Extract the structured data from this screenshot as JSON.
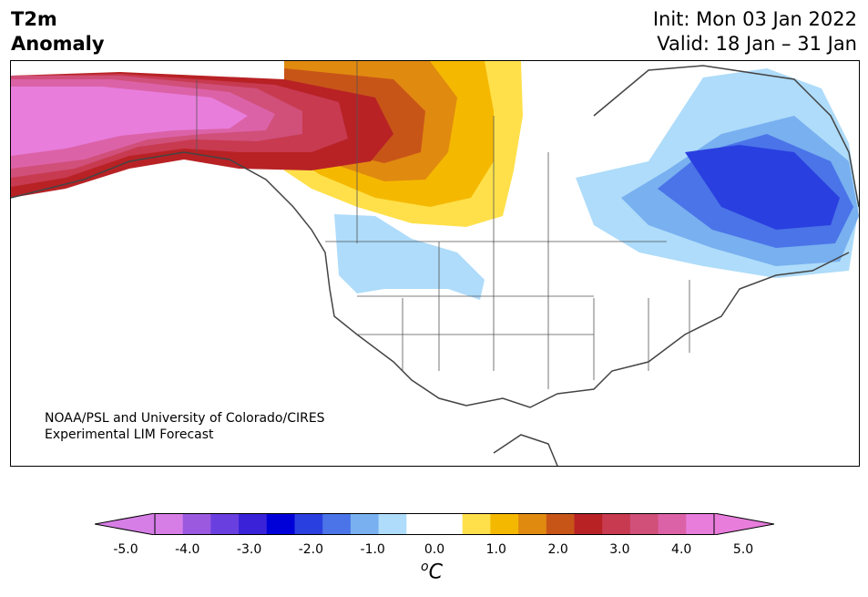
{
  "header": {
    "variable_line1": "T2m",
    "variable_line2": "Anomaly",
    "init": "Init: Mon 03 Jan 2022",
    "valid": "Valid: 18 Jan – 31 Jan"
  },
  "credit": {
    "line1": "NOAA/PSL and University of Colorado/CIRES",
    "line2": "Experimental LIM Forecast"
  },
  "colorbar": {
    "unit_sup": "o",
    "unit": "C",
    "ticks": [
      "-5.0",
      "-4.0",
      "-3.0",
      "-2.0",
      "-1.0",
      "0.0",
      "1.0",
      "2.0",
      "3.0",
      "4.0",
      "5.0"
    ],
    "under_color": "#d67ee6",
    "over_color": "#e87ddc",
    "bin_colors": [
      "#d67ee6",
      "#9b59e0",
      "#6a3fe0",
      "#3a22d8",
      "#0000d8",
      "#2a3fe0",
      "#4a74e8",
      "#78b0f0",
      "#aedcfa",
      "#ffffff",
      "#ffffff",
      "#ffe04a",
      "#f5b800",
      "#e08a10",
      "#c85518",
      "#b82225",
      "#c83a50",
      "#d0507a",
      "#dc62a8",
      "#e87ddc"
    ]
  },
  "regions": {
    "warm_anomaly": "Alaska / Northwestern Canada",
    "cold_anomaly": "Eastern Canada / Quebec"
  }
}
